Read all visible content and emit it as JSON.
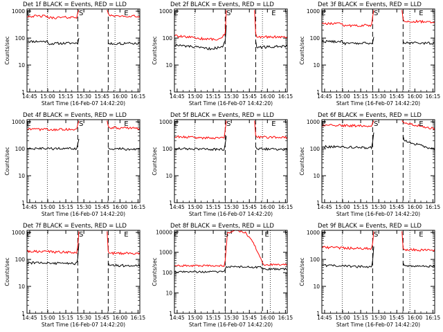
{
  "chart_data": [
    {
      "type": "line",
      "title": "Det 1f BLACK = Events, RED = LLD",
      "xlabel": "Start Time (16-Feb-07 14:42:20)",
      "ylabel": "Counts/sec",
      "y_scale": "log",
      "xlim": [
        0,
        100
      ],
      "ylim": [
        1,
        1200
      ],
      "x_tick_labels": [
        "14:45",
        "15:00",
        "15:15",
        "15:30",
        "15:45",
        "16:00",
        "16:15"
      ],
      "y_tick_labels": [
        "1",
        "10",
        "100",
        "1000"
      ],
      "markers": [
        {
          "label": "E",
          "x": 1.5
        },
        {
          "label": "S",
          "x": 48
        },
        {
          "label": "E",
          "x": 88
        }
      ],
      "dotted_lines_x": [
        18,
        78
      ],
      "dashed_lines_x": [
        45,
        72
      ],
      "gap": [
        46,
        72
      ],
      "series": [
        {
          "color": "#000000",
          "segments": [
            {
              "x": [
                0,
                18,
                19,
                45,
                46
              ],
              "y": [
                75,
                75,
                62,
                66,
                100
              ]
            },
            {
              "x": [
                72,
                73,
                100
              ],
              "y": [
                66,
                62,
                64
              ]
            }
          ]
        },
        {
          "color": "#ff0000",
          "segments": [
            {
              "x": [
                0,
                18,
                19,
                44,
                45,
                46
              ],
              "y": [
                650,
                650,
                560,
                600,
                850,
                1100
              ]
            },
            {
              "x": [
                71,
                72,
                73,
                100
              ],
              "y": [
                1100,
                850,
                700,
                640
              ]
            }
          ]
        }
      ]
    },
    {
      "type": "line",
      "title": "Det 2f BLACK = Events, RED = LLD",
      "xlabel": "Start Time (16-Feb-07 14:42:20)",
      "ylabel": "Counts/sec",
      "y_scale": "log",
      "xlim": [
        0,
        100
      ],
      "ylim": [
        1,
        1200
      ],
      "x_tick_labels": [
        "14:45",
        "15:00",
        "15:15",
        "15:30",
        "15:45",
        "16:00",
        "16:15"
      ],
      "y_tick_labels": [
        "1",
        "10",
        "100",
        "1000"
      ],
      "markers": [
        {
          "label": "E",
          "x": 1.5
        },
        {
          "label": "S",
          "x": 48
        },
        {
          "label": "E",
          "x": 88
        }
      ],
      "dotted_lines_x": [
        18,
        78
      ],
      "dashed_lines_x": [
        45,
        72
      ],
      "gap": [
        46,
        72
      ],
      "series": [
        {
          "color": "#000000",
          "segments": [
            {
              "x": [
                0,
                15,
                30,
                42,
                45,
                46
              ],
              "y": [
                55,
                48,
                40,
                45,
                75,
                300
              ]
            },
            {
              "x": [
                72,
                73,
                100
              ],
              "y": [
                80,
                45,
                50
              ]
            }
          ]
        },
        {
          "color": "#ff0000",
          "segments": [
            {
              "x": [
                0,
                15,
                30,
                42,
                45,
                46
              ],
              "y": [
                120,
                105,
                90,
                95,
                160,
                1100
              ]
            },
            {
              "x": [
                71,
                72,
                73,
                100
              ],
              "y": [
                1100,
                150,
                110,
                110
              ]
            }
          ]
        }
      ]
    },
    {
      "type": "line",
      "title": "Det 3f BLACK = Events, RED = LLD",
      "xlabel": "Start Time (16-Feb-07 14:42:20)",
      "ylabel": "Counts/sec",
      "y_scale": "log",
      "xlim": [
        0,
        100
      ],
      "ylim": [
        1,
        1200
      ],
      "x_tick_labels": [
        "14:45",
        "15:00",
        "15:15",
        "15:30",
        "15:45",
        "16:00",
        "16:15"
      ],
      "y_tick_labels": [
        "1",
        "10",
        "100",
        "1000"
      ],
      "markers": [
        {
          "label": "E",
          "x": 1.5
        },
        {
          "label": "S",
          "x": 48
        },
        {
          "label": "E",
          "x": 88
        }
      ],
      "dotted_lines_x": [
        18,
        78
      ],
      "dashed_lines_x": [
        45,
        72
      ],
      "gap": [
        46,
        72
      ],
      "series": [
        {
          "color": "#000000",
          "segments": [
            {
              "x": [
                0,
                18,
                19,
                45,
                46
              ],
              "y": [
                75,
                75,
                62,
                65,
                110
              ]
            },
            {
              "x": [
                72,
                73,
                100
              ],
              "y": [
                75,
                65,
                65
              ]
            }
          ]
        },
        {
          "color": "#ff0000",
          "segments": [
            {
              "x": [
                0,
                18,
                19,
                44,
                45,
                46
              ],
              "y": [
                350,
                340,
                290,
                300,
                600,
                1100
              ]
            },
            {
              "x": [
                71,
                72,
                73,
                100
              ],
              "y": [
                1100,
                500,
                420,
                400
              ]
            }
          ]
        }
      ]
    },
    {
      "type": "line",
      "title": "Det 4f BLACK = Events, RED = LLD",
      "xlabel": "Start Time (16-Feb-07 14:42:20)",
      "ylabel": "Counts/sec",
      "y_scale": "log",
      "xlim": [
        0,
        100
      ],
      "ylim": [
        1,
        1200
      ],
      "x_tick_labels": [
        "14:45",
        "15:00",
        "15:15",
        "15:30",
        "15:45",
        "16:00",
        "16:15"
      ],
      "y_tick_labels": [
        "1",
        "10",
        "100",
        "1000"
      ],
      "markers": [
        {
          "label": "E",
          "x": 1.5
        },
        {
          "label": "S",
          "x": 48
        },
        {
          "label": "E",
          "x": 88
        }
      ],
      "dotted_lines_x": [
        18,
        78
      ],
      "dashed_lines_x": [
        45,
        72
      ],
      "gap": [
        46,
        72
      ],
      "series": [
        {
          "color": "#000000",
          "segments": [
            {
              "x": [
                0,
                44,
                45,
                46
              ],
              "y": [
                100,
                100,
                150,
                230
              ]
            },
            {
              "x": [
                72,
                73,
                100
              ],
              "y": [
                110,
                100,
                95
              ]
            }
          ]
        },
        {
          "color": "#ff0000",
          "segments": [
            {
              "x": [
                0,
                44,
                45,
                46
              ],
              "y": [
                520,
                520,
                800,
                1100
              ]
            },
            {
              "x": [
                71,
                72,
                73,
                100
              ],
              "y": [
                1100,
                700,
                600,
                570
              ]
            }
          ]
        }
      ]
    },
    {
      "type": "line",
      "title": "Det 5f BLACK = Events, RED = LLD",
      "xlabel": "Start Time (16-Feb-07 14:42:20)",
      "ylabel": "Counts/sec",
      "y_scale": "log",
      "xlim": [
        0,
        100
      ],
      "ylim": [
        1,
        1200
      ],
      "x_tick_labels": [
        "14:45",
        "15:00",
        "15:15",
        "15:30",
        "15:45",
        "16:00",
        "16:15"
      ],
      "y_tick_labels": [
        "1",
        "10",
        "100",
        "1000"
      ],
      "markers": [
        {
          "label": "E",
          "x": 1.5
        },
        {
          "label": "S",
          "x": 48
        },
        {
          "label": "E",
          "x": 88
        }
      ],
      "dotted_lines_x": [
        18,
        78
      ],
      "dashed_lines_x": [
        45,
        72
      ],
      "gap": [
        46,
        72
      ],
      "series": [
        {
          "color": "#000000",
          "segments": [
            {
              "x": [
                0,
                44,
                45,
                46
              ],
              "y": [
                100,
                95,
                150,
                300
              ]
            },
            {
              "x": [
                72,
                73,
                100
              ],
              "y": [
                120,
                100,
                95
              ]
            }
          ]
        },
        {
          "color": "#ff0000",
          "segments": [
            {
              "x": [
                0,
                30,
                44,
                45,
                46
              ],
              "y": [
                280,
                250,
                250,
                500,
                1100
              ]
            },
            {
              "x": [
                71,
                72,
                73,
                100
              ],
              "y": [
                1100,
                320,
                270,
                260
              ]
            }
          ]
        }
      ]
    },
    {
      "type": "line",
      "title": "Det 6f BLACK = Events, RED = LLD",
      "xlabel": "Start Time (16-Feb-07 14:42:20)",
      "ylabel": "Counts/sec",
      "y_scale": "log",
      "xlim": [
        0,
        100
      ],
      "ylim": [
        1,
        1200
      ],
      "x_tick_labels": [
        "14:45",
        "15:00",
        "15:15",
        "15:30",
        "15:45",
        "16:00",
        "16:15"
      ],
      "y_tick_labels": [
        "1",
        "10",
        "100",
        "1000"
      ],
      "markers": [
        {
          "label": "E",
          "x": 1.5
        },
        {
          "label": "S",
          "x": 48
        },
        {
          "label": "E",
          "x": 88
        }
      ],
      "dotted_lines_x": [
        18,
        78
      ],
      "dashed_lines_x": [
        45,
        72
      ],
      "gap": [
        46,
        72
      ],
      "series": [
        {
          "color": "#000000",
          "segments": [
            {
              "x": [
                0,
                44,
                45,
                46
              ],
              "y": [
                120,
                110,
                180,
                400
              ]
            },
            {
              "x": [
                72,
                73,
                85,
                100
              ],
              "y": [
                300,
                200,
                140,
                95
              ]
            }
          ]
        },
        {
          "color": "#ff0000",
          "segments": [
            {
              "x": [
                0,
                44,
                45,
                46
              ],
              "y": [
                750,
                700,
                900,
                1100
              ]
            },
            {
              "x": [
                71,
                72,
                73,
                100
              ],
              "y": [
                1100,
                1000,
                900,
                550
              ]
            }
          ]
        }
      ]
    },
    {
      "type": "line",
      "title": "Det 7f BLACK = Events, RED = LLD",
      "xlabel": "Start Time (16-Feb-07 14:42:20)",
      "ylabel": "Counts/sec",
      "y_scale": "log",
      "xlim": [
        0,
        100
      ],
      "ylim": [
        1,
        1200
      ],
      "x_tick_labels": [
        "14:45",
        "15:00",
        "15:15",
        "15:30",
        "15:45",
        "16:00",
        "16:15"
      ],
      "y_tick_labels": [
        "1",
        "10",
        "100",
        "1000"
      ],
      "markers": [
        {
          "label": "E",
          "x": 1.5
        },
        {
          "label": "S",
          "x": 48
        },
        {
          "label": "E",
          "x": 88
        }
      ],
      "dotted_lines_x": [
        18,
        78
      ],
      "dashed_lines_x": [
        45,
        72
      ],
      "gap": [
        46,
        72
      ],
      "series": [
        {
          "color": "#000000",
          "segments": [
            {
              "x": [
                0,
                44,
                45,
                46
              ],
              "y": [
                75,
                70,
                110,
                400
              ]
            },
            {
              "x": [
                72,
                73,
                100
              ],
              "y": [
                75,
                60,
                58
              ]
            }
          ]
        },
        {
          "color": "#ff0000",
          "segments": [
            {
              "x": [
                0,
                44,
                45,
                46
              ],
              "y": [
                200,
                180,
                300,
                1100
              ]
            },
            {
              "x": [
                71,
                72,
                73,
                100
              ],
              "y": [
                1100,
                200,
                170,
                170
              ]
            }
          ]
        }
      ]
    },
    {
      "type": "line",
      "title": "Det 8f BLACK = Events, RED = LLD",
      "xlabel": "Start Time (16-Feb-07 14:42:20)",
      "ylabel": "Counts/sec",
      "y_scale": "log",
      "xlim": [
        0,
        100
      ],
      "ylim": [
        1,
        12000
      ],
      "x_tick_labels": [
        "14:45",
        "15:00",
        "15:15",
        "15:30",
        "15:45",
        "16:00",
        "16:15"
      ],
      "y_tick_labels": [
        "1",
        "10",
        "100",
        "1000",
        "10000"
      ],
      "markers": [
        {
          "label": "E",
          "x": 1.5
        },
        {
          "label": "S",
          "x": 46
        },
        {
          "label": "E",
          "x": 82
        }
      ],
      "dotted_lines_x": [
        18,
        85
      ],
      "dashed_lines_x": [
        45,
        78
      ],
      "gap": null,
      "series": [
        {
          "color": "#000000",
          "segments": [
            {
              "x": [
                0,
                44,
                45,
                46,
                78,
                79,
                100
              ],
              "y": [
                110,
                110,
                150,
                200,
                180,
                150,
                150
              ]
            }
          ]
        },
        {
          "color": "#ff0000",
          "segments": [
            {
              "x": [
                0,
                44,
                45,
                46,
                47,
                55,
                63,
                70,
                78,
                79,
                100
              ],
              "y": [
                220,
                220,
                400,
                2000,
                9000,
                12000,
                9000,
                3000,
                300,
                250,
                250
              ]
            }
          ]
        }
      ]
    },
    {
      "type": "line",
      "title": "Det 9f BLACK = Events, RED = LLD",
      "xlabel": "Start Time (16-Feb-07 14:42:20)",
      "ylabel": "Counts/sec",
      "y_scale": "log",
      "xlim": [
        0,
        100
      ],
      "ylim": [
        1,
        1200
      ],
      "x_tick_labels": [
        "14:45",
        "15:00",
        "15:15",
        "15:30",
        "15:45",
        "16:00",
        "16:15"
      ],
      "y_tick_labels": [
        "1",
        "10",
        "100",
        "1000"
      ],
      "markers": [
        {
          "label": "E",
          "x": 1.5
        },
        {
          "label": "S",
          "x": 48
        },
        {
          "label": "E",
          "x": 88
        }
      ],
      "dotted_lines_x": [
        18,
        78
      ],
      "dashed_lines_x": [
        45,
        72
      ],
      "gap": [
        46,
        72
      ],
      "series": [
        {
          "color": "#000000",
          "segments": [
            {
              "x": [
                0,
                44,
                45,
                46
              ],
              "y": [
                60,
                52,
                90,
                300
              ]
            },
            {
              "x": [
                72,
                73,
                100
              ],
              "y": [
                75,
                60,
                55
              ]
            }
          ]
        },
        {
          "color": "#ff0000",
          "segments": [
            {
              "x": [
                0,
                44,
                45,
                46
              ],
              "y": [
                280,
                250,
                400,
                1100
              ]
            },
            {
              "x": [
                71,
                72,
                73,
                100
              ],
              "y": [
                1100,
                260,
                230,
                220
              ]
            }
          ]
        }
      ]
    }
  ]
}
